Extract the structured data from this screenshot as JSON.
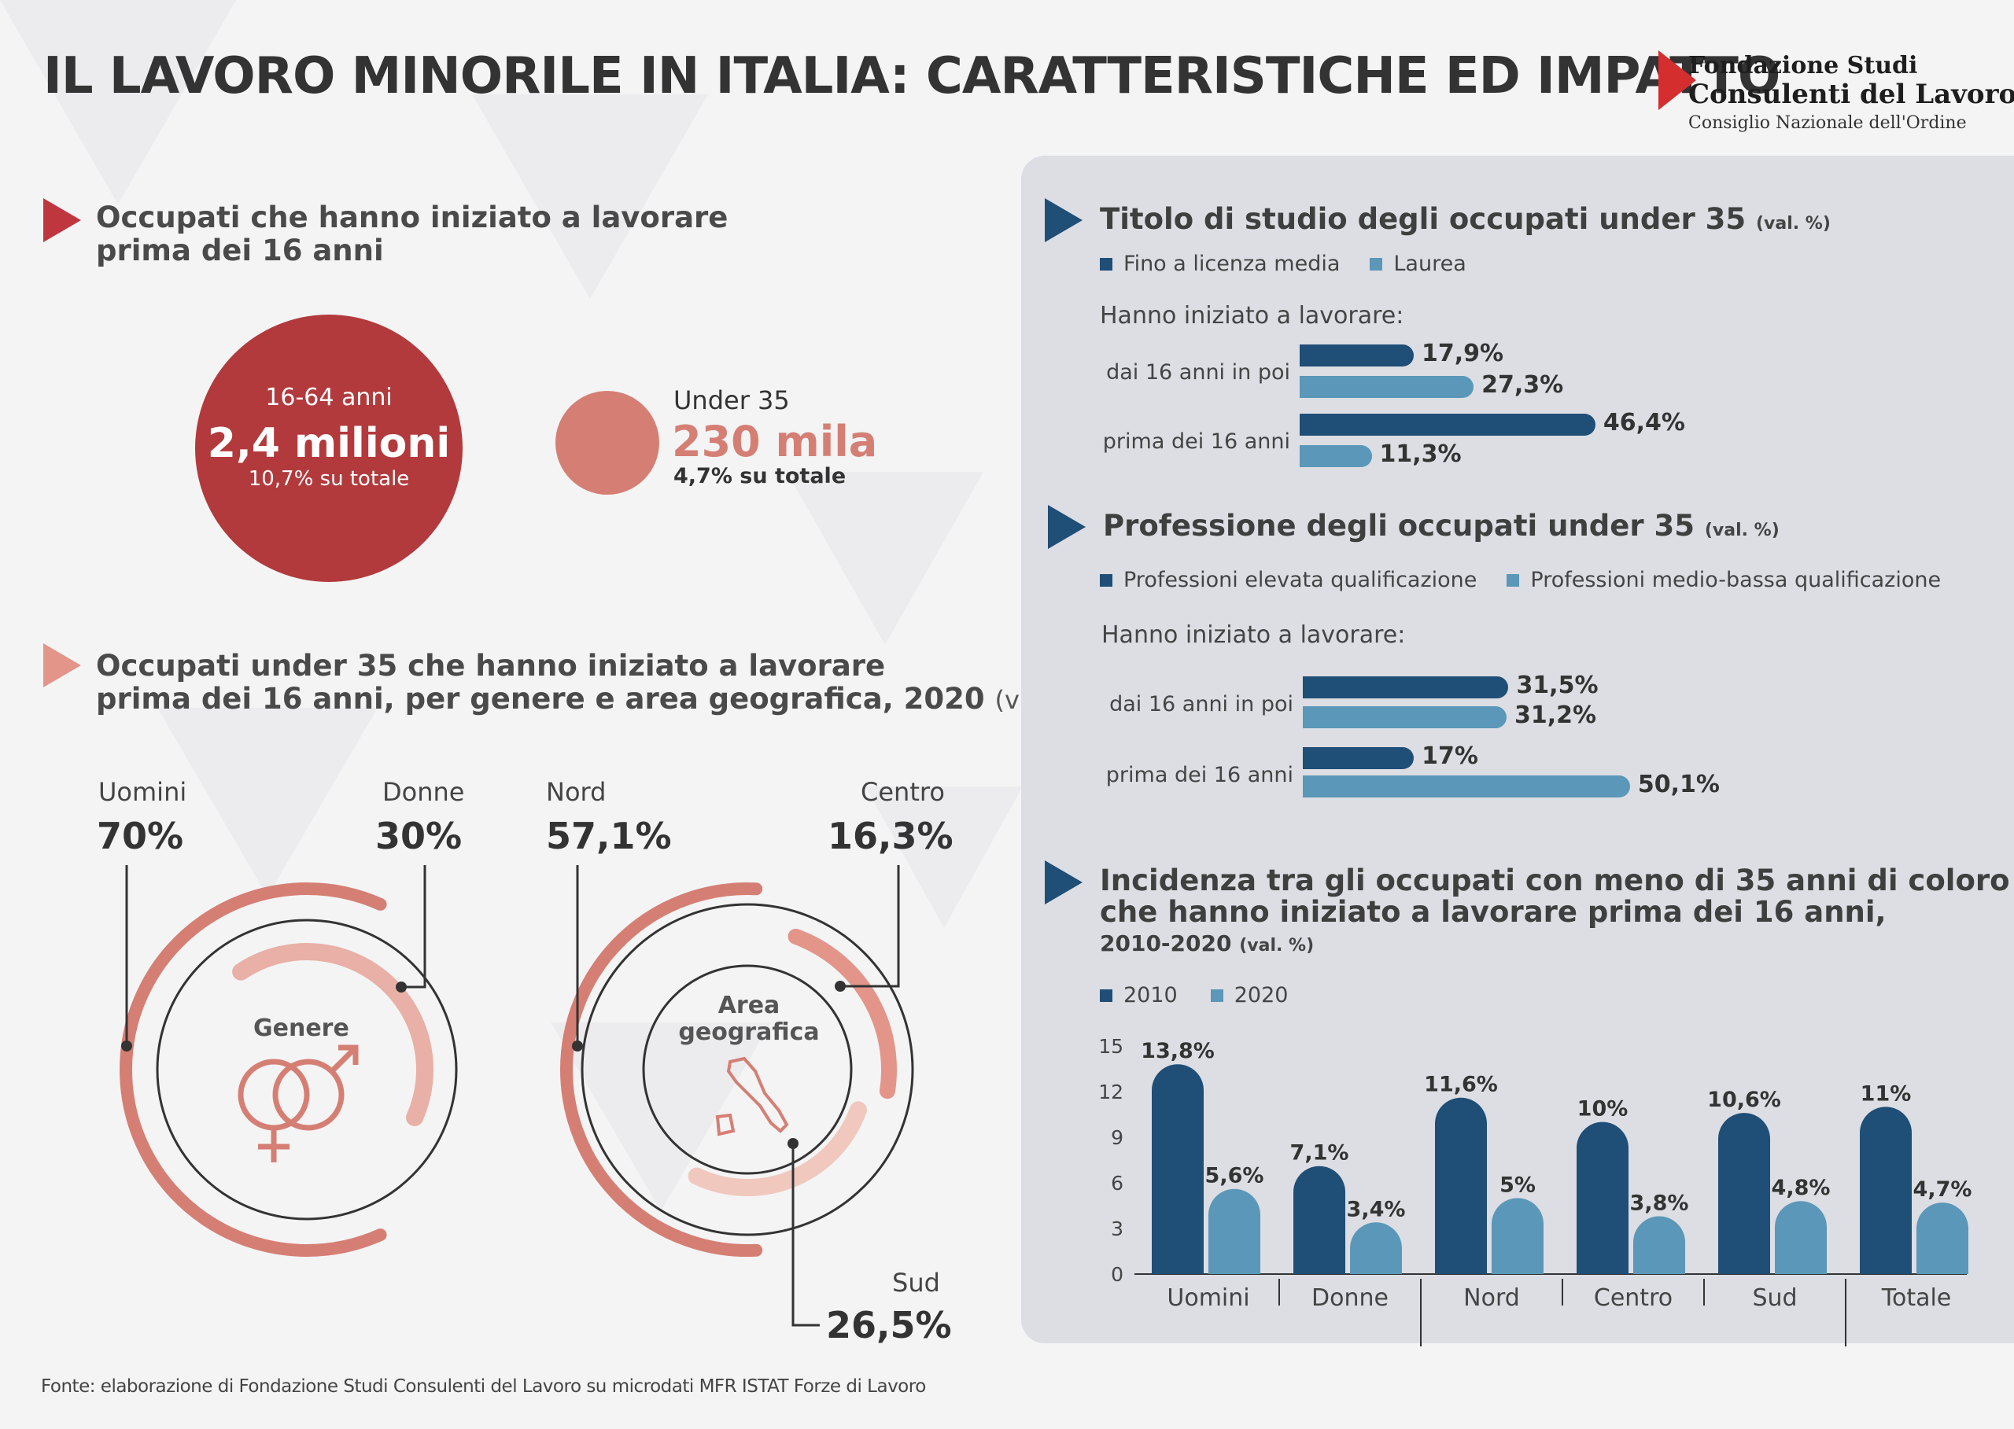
{
  "title": "IL LAVORO MINORILE IN ITALIA: CARATTERISTICHE ED IMPATTO",
  "logo": {
    "line1": "Fondazione Studi",
    "line2": "Consulenti del Lavoro",
    "line3": "Consiglio Nazionale dell'Ordine"
  },
  "left": {
    "section1": {
      "title_line1": "Occupati che hanno iniziato a lavorare",
      "title_line2": "prima dei 16 anni",
      "big": {
        "label": "16-64 anni",
        "value": "2,4 milioni",
        "share": "10,7% su totale"
      },
      "small": {
        "label": "Under 35",
        "value": "230 mila",
        "share": "4,7% su totale"
      }
    },
    "section2": {
      "title_line1": "Occupati under 35 che hanno iniziato a lavorare",
      "title_line2": "prima dei 16 anni, per genere e area geografica, 2020",
      "title_unit": "(val. %)",
      "genere": {
        "center": "Genere",
        "items": [
          {
            "label": "Uomini",
            "value": "70%"
          },
          {
            "label": "Donne",
            "value": "30%"
          }
        ]
      },
      "area": {
        "center_line1": "Area",
        "center_line2": "geografica",
        "items": [
          {
            "label": "Nord",
            "value": "57,1%"
          },
          {
            "label": "Centro",
            "value": "16,3%"
          },
          {
            "label": "Sud",
            "value": "26,5%"
          }
        ]
      }
    }
  },
  "right": {
    "titolo": {
      "title": "Titolo di studio degli occupati under 35",
      "unit": "(val. %)",
      "legend": [
        "Fino a licenza media",
        "Laurea"
      ],
      "subhead": "Hanno iniziato a lavorare:",
      "categories": [
        "dai 16 anni in poi",
        "prima dei 16 anni"
      ]
    },
    "professione": {
      "title": "Professione degli occupati under 35",
      "unit": "(val. %)",
      "legend": [
        "Professioni elevata qualificazione",
        "Professioni medio-bassa qualificazione"
      ],
      "subhead": "Hanno iniziato a lavorare:",
      "categories": [
        "dai 16 anni in poi",
        "prima dei 16 anni"
      ]
    },
    "incidenza": {
      "title_line1": "Incidenza tra gli occupati con meno di 35 anni di coloro",
      "title_line2": "che hanno iniziato  a lavorare prima dei 16 anni,",
      "title_line3": "2010-2020",
      "unit": "(val. %)",
      "legend": [
        "2010",
        "2020"
      ]
    }
  },
  "chart_data": [
    {
      "type": "bar",
      "orientation": "horizontal",
      "title": "Titolo di studio degli occupati under 35 (val. %)",
      "categories": [
        "dai 16 anni in poi",
        "prima dei 16 anni"
      ],
      "series": [
        {
          "name": "Fino a licenza media",
          "values": [
            17.9,
            46.4
          ],
          "labels": [
            "17,9%",
            "46,4%"
          ]
        },
        {
          "name": "Laurea",
          "values": [
            27.3,
            11.3
          ],
          "labels": [
            "27,3%",
            "11,3%"
          ]
        }
      ],
      "colors": [
        "#1f4e77",
        "#5b97b8"
      ]
    },
    {
      "type": "bar",
      "orientation": "horizontal",
      "title": "Professione degli occupati under 35 (val. %)",
      "categories": [
        "dai 16 anni in poi",
        "prima dei 16 anni"
      ],
      "series": [
        {
          "name": "Professioni elevata qualificazione",
          "values": [
            31.5,
            17
          ],
          "labels": [
            "31,5%",
            "17%"
          ]
        },
        {
          "name": "Professioni medio-bassa qualificazione",
          "values": [
            31.2,
            50.1
          ],
          "labels": [
            "31,2%",
            "50,1%"
          ]
        }
      ],
      "colors": [
        "#1f4e77",
        "#5b97b8"
      ]
    },
    {
      "type": "bar",
      "title": "Incidenza tra gli occupati con meno di 35 anni di coloro che hanno iniziato a lavorare prima dei 16 anni, 2010-2020 (val. %)",
      "categories": [
        "Uomini",
        "Donne",
        "Nord",
        "Centro",
        "Sud",
        "Totale"
      ],
      "series": [
        {
          "name": "2010",
          "values": [
            13.8,
            7.1,
            11.6,
            10,
            10.6,
            11
          ],
          "labels": [
            "13,8%",
            "7,1%",
            "11,6%",
            "10%",
            "10,6%",
            "11%"
          ]
        },
        {
          "name": "2020",
          "values": [
            5.6,
            3.4,
            5,
            3.8,
            4.8,
            4.7
          ],
          "labels": [
            "5,6%",
            "3,4%",
            "5%",
            "3,8%",
            "4,8%",
            "4,7%"
          ]
        }
      ],
      "ylim": [
        0,
        15
      ],
      "yticks": [
        "0",
        "3",
        "6",
        "9",
        "12",
        "15"
      ],
      "colors": [
        "#1f4e77",
        "#5b97b8"
      ]
    },
    {
      "type": "pie",
      "title": "Genere",
      "categories": [
        "Uomini",
        "Donne"
      ],
      "values": [
        70,
        30
      ]
    },
    {
      "type": "pie",
      "title": "Area geografica",
      "categories": [
        "Nord",
        "Centro",
        "Sud"
      ],
      "values": [
        57.1,
        16.3,
        26.5
      ]
    }
  ]
}
